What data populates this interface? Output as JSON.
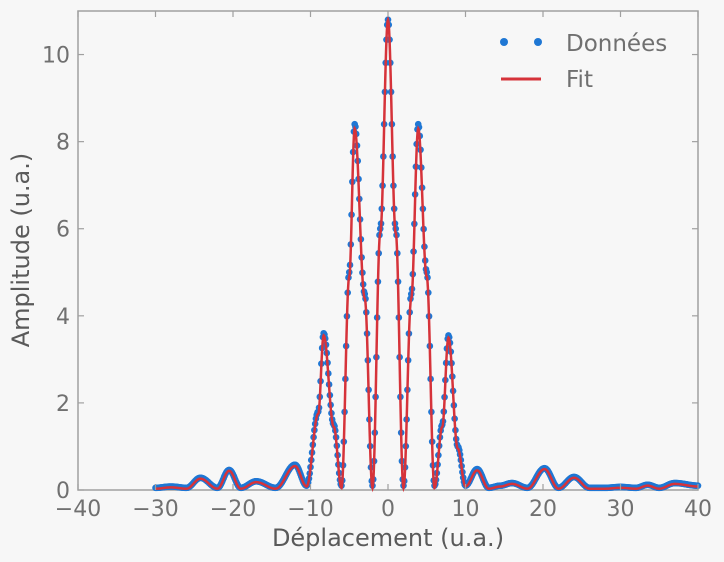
{
  "chart_data": {
    "type": "line",
    "title": "",
    "xlabel": "Déplacement (u.a.)",
    "ylabel": "Amplitude (u.a.)",
    "xlim": [
      -40,
      40
    ],
    "ylim": [
      0,
      11
    ],
    "xticks": [
      -40,
      -30,
      -20,
      -10,
      0,
      10,
      20,
      30,
      40
    ],
    "xtick_labels": [
      "−40",
      "−30",
      "−20",
      "−10",
      "0",
      "10",
      "20",
      "30",
      "40"
    ],
    "yticks": [
      0,
      2,
      4,
      6,
      8,
      10
    ],
    "ytick_labels": [
      "0",
      "2",
      "4",
      "6",
      "8",
      "10"
    ],
    "grid": false,
    "legend": "top-right",
    "x_range_data": [
      -30,
      40
    ],
    "series": [
      {
        "name": "Données",
        "style": "markers",
        "color": "#1f77d4",
        "x": [
          -30,
          -28,
          -26,
          -24.2,
          -22,
          -20.5,
          -19,
          -17,
          -14.5,
          -12,
          -10.5,
          -9,
          -8.3,
          -7,
          -6,
          -5,
          -4.3,
          -3,
          -2,
          -1,
          0,
          1,
          2,
          3,
          3.9,
          5,
          6,
          7,
          7.8,
          9,
          10,
          11.5,
          13,
          14.5,
          16,
          18,
          20.2,
          22,
          24,
          26,
          28,
          30,
          32,
          33.5,
          35,
          37,
          40
        ],
        "y": [
          0.05,
          0.08,
          0.05,
          0.28,
          0.05,
          0.46,
          0.05,
          0.2,
          0.05,
          0.58,
          0.1,
          1.8,
          3.6,
          1.5,
          0.1,
          5.0,
          8.4,
          4.5,
          0.1,
          6.0,
          10.8,
          6.0,
          0.1,
          4.5,
          8.4,
          5.0,
          0.1,
          1.5,
          3.55,
          1.0,
          0.1,
          0.48,
          0.05,
          0.1,
          0.16,
          0.05,
          0.5,
          0.05,
          0.3,
          0.05,
          0.05,
          0.07,
          0.05,
          0.12,
          0.05,
          0.16,
          0.1
        ]
      },
      {
        "name": "Fit",
        "style": "line",
        "color": "#d6333a",
        "x": [
          -30,
          -28,
          -26,
          -24.2,
          -22,
          -20.5,
          -19,
          -17,
          -14.5,
          -12,
          -10.5,
          -9,
          -8.3,
          -7,
          -6,
          -5,
          -4.3,
          -3,
          -2,
          -1,
          0,
          1,
          2,
          3,
          3.9,
          5,
          6,
          7,
          7.8,
          9,
          10,
          11.5,
          13,
          14.5,
          16,
          18,
          20.2,
          22,
          24,
          26,
          28,
          30,
          32,
          33.5,
          35,
          37,
          40
        ],
        "y": [
          0.03,
          0.06,
          0.03,
          0.26,
          0.03,
          0.44,
          0.03,
          0.18,
          0.03,
          0.55,
          0.08,
          1.75,
          3.55,
          1.45,
          0.05,
          4.9,
          8.3,
          4.4,
          0.05,
          5.9,
          10.8,
          5.9,
          0.05,
          4.4,
          8.3,
          4.9,
          0.05,
          1.45,
          3.5,
          0.95,
          0.08,
          0.45,
          0.03,
          0.08,
          0.14,
          0.03,
          0.48,
          0.03,
          0.28,
          0.03,
          0.03,
          0.05,
          0.03,
          0.1,
          0.03,
          0.14,
          0.08
        ]
      }
    ]
  }
}
